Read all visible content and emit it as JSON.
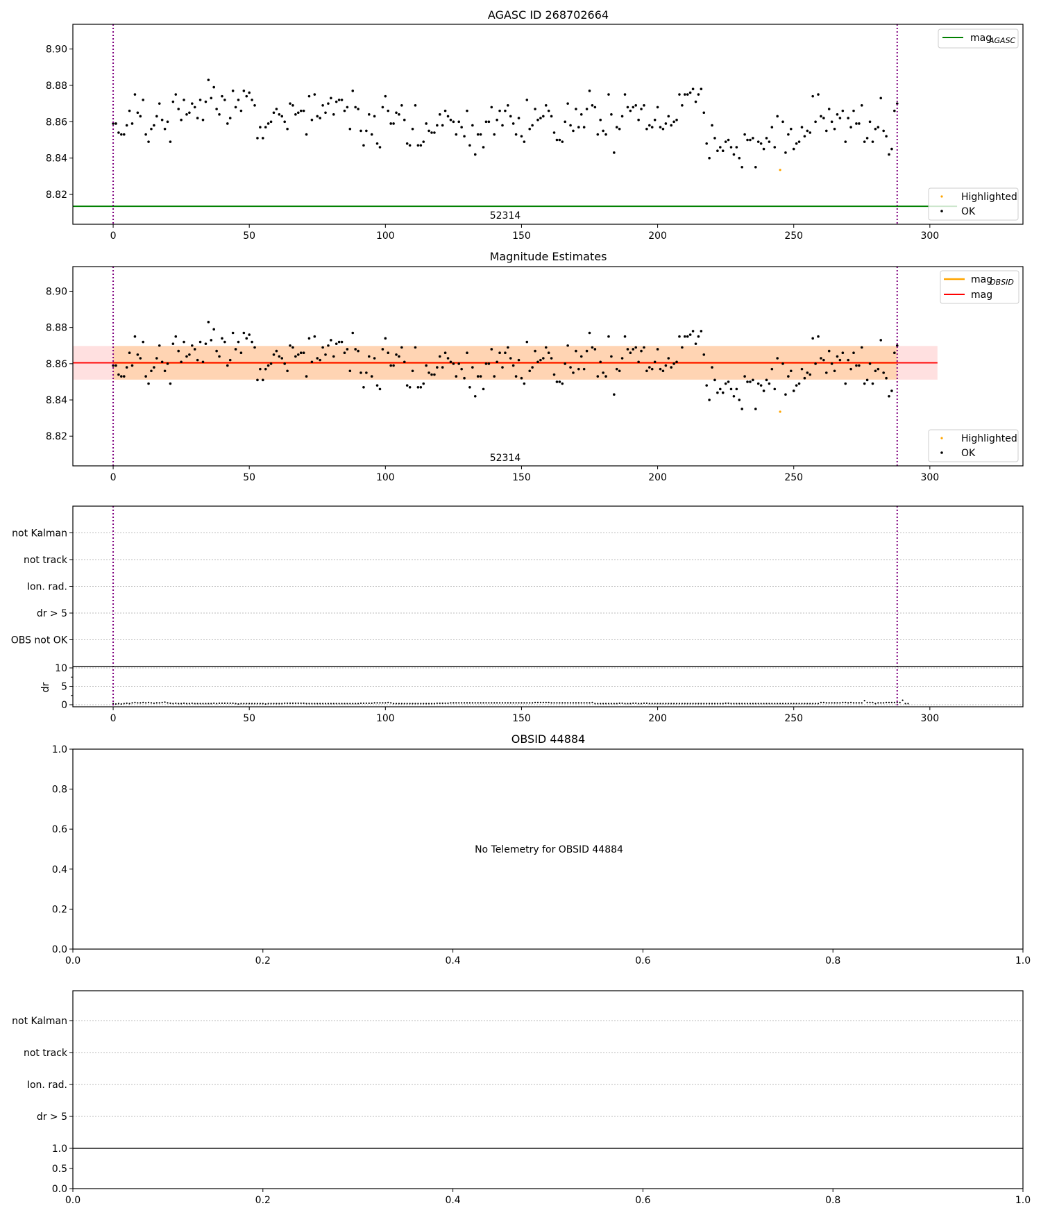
{
  "chart_data": [
    {
      "type": "scatter",
      "title": "AGASC ID 268702664",
      "xlim": [
        -14.8,
        334.2
      ],
      "ylim": [
        8.8036,
        8.9136
      ],
      "xticks": [
        "0",
        "50",
        "100",
        "150",
        "200",
        "250",
        "300"
      ],
      "yticks": [
        "8.82",
        "8.84",
        "8.86",
        "8.88",
        "8.90"
      ],
      "annotation": "52314",
      "annotation_x": 144,
      "obsid_bounds": [
        0,
        288
      ],
      "mag_agasc": 8.8135,
      "legend_top": {
        "position": "upper-right",
        "label_main": "mag",
        "label_sub": "AGASC"
      },
      "legend_bottom": {
        "position": "lower-right",
        "labels": [
          "Highlighted",
          "OK"
        ]
      },
      "highlighted_index": 245,
      "colors": {
        "ok": "#000000",
        "highlighted": "#ffa500",
        "agasc": "#008000",
        "bounds": "#800080"
      }
    },
    {
      "type": "scatter",
      "title": "Magnitude Estimates",
      "xlim": [
        -14.8,
        334.2
      ],
      "ylim": [
        8.8036,
        8.9136
      ],
      "xticks": [
        "0",
        "50",
        "100",
        "150",
        "200",
        "250",
        "300"
      ],
      "yticks": [
        "8.82",
        "8.84",
        "8.86",
        "8.88",
        "8.90"
      ],
      "annotation": "52314",
      "mag_obsid": 8.8605,
      "mag_obsid_range": [
        8.8512,
        8.8698
      ],
      "mag": 8.8605,
      "mag_range": [
        8.8512,
        8.8698
      ],
      "mag_x_end": 302.8,
      "legend_top": {
        "position": "upper-right",
        "items": [
          {
            "main": "mag",
            "sub": "OBSID",
            "color": "#ffa500"
          },
          {
            "main": "mag",
            "sub": "",
            "color": "#ff0000"
          }
        ]
      },
      "legend_bottom": {
        "position": "lower-right",
        "labels": [
          "Highlighted",
          "OK"
        ]
      }
    },
    {
      "type": "scatter",
      "flags": [
        "OBS not OK",
        "dr > 5",
        "Ion. rad.",
        "not track",
        "not Kalman"
      ],
      "dr_ylabel": "dr",
      "dr_yticks": [
        "0",
        "5",
        "10"
      ],
      "xticks": [
        "0",
        "50",
        "100",
        "150",
        "200",
        "250",
        "300"
      ],
      "xlim": [
        -14.8,
        334.2
      ]
    },
    {
      "type": "scatter",
      "title": "OBSID 44884",
      "message": "No Telemetry for OBSID 44884",
      "xticks": [
        "0.0",
        "0.2",
        "0.4",
        "0.6",
        "0.8",
        "1.0"
      ],
      "yticks": [
        "0.0",
        "0.2",
        "0.4",
        "0.6",
        "0.8",
        "1.0"
      ]
    },
    {
      "type": "scatter",
      "flags": [
        "dr > 5",
        "Ion. rad.",
        "not track",
        "not Kalman"
      ],
      "xticks": [
        "0.0",
        "0.2",
        "0.4",
        "0.6",
        "0.8",
        "1.0"
      ],
      "sub_yticks": [
        "0.0",
        "0.5",
        "1.0"
      ]
    }
  ],
  "series": {
    "mag": [
      8.859,
      8.859,
      8.854,
      8.853,
      8.853,
      8.858,
      8.866,
      8.859,
      8.875,
      8.865,
      8.863,
      8.872,
      8.853,
      8.849,
      8.856,
      8.858,
      8.863,
      8.87,
      8.861,
      8.856,
      8.86,
      8.849,
      8.871,
      8.875,
      8.867,
      8.861,
      8.872,
      8.864,
      8.865,
      8.87,
      8.868,
      8.862,
      8.872,
      8.861,
      8.871,
      8.883,
      8.873,
      8.879,
      8.867,
      8.864,
      8.874,
      8.872,
      8.859,
      8.862,
      8.877,
      8.868,
      8.872,
      8.866,
      8.877,
      8.874,
      8.876,
      8.872,
      8.869,
      8.851,
      8.857,
      8.851,
      8.857,
      8.859,
      8.86,
      8.865,
      8.867,
      8.864,
      8.863,
      8.86,
      8.856,
      8.87,
      8.869,
      8.864,
      8.865,
      8.866,
      8.866,
      8.853,
      8.874,
      8.861,
      8.875,
      8.863,
      8.862,
      8.869,
      8.865,
      8.87,
      8.873,
      8.864,
      8.871,
      8.872,
      8.872,
      8.866,
      8.868,
      8.856,
      8.877,
      8.868,
      8.867,
      8.855,
      8.847,
      8.855,
      8.864,
      8.853,
      8.863,
      8.848,
      8.846,
      8.868,
      8.874,
      8.866,
      8.859,
      8.859,
      8.865,
      8.864,
      8.869,
      8.861,
      8.848,
      8.847,
      8.856,
      8.869,
      8.847,
      8.847,
      8.849,
      8.859,
      8.855,
      8.854,
      8.854,
      8.858,
      8.864,
      8.858,
      8.866,
      8.863,
      8.861,
      8.86,
      8.853,
      8.86,
      8.857,
      8.852,
      8.866,
      8.847,
      8.858,
      8.842,
      8.853,
      8.853,
      8.846,
      8.86,
      8.86,
      8.868,
      8.853,
      8.861,
      8.866,
      8.858,
      8.866,
      8.869,
      8.863,
      8.859,
      8.853,
      8.862,
      8.852,
      8.849,
      8.872,
      8.856,
      8.858,
      8.867,
      8.861,
      8.862,
      8.863,
      8.869,
      8.866,
      8.863,
      8.854,
      8.85,
      8.85,
      8.849,
      8.86,
      8.87,
      8.858,
      8.855,
      8.867,
      8.857,
      8.864,
      8.857,
      8.867,
      8.877,
      8.869,
      8.868,
      8.853,
      8.861,
      8.855,
      8.853,
      8.875,
      8.864,
      8.843,
      8.857,
      8.856,
      8.863,
      8.875,
      8.868,
      8.866,
      8.868,
      8.869,
      8.861,
      8.867,
      8.869,
      8.856,
      8.858,
      8.857,
      8.861,
      8.868,
      8.857,
      8.856,
      8.859,
      8.863,
      8.858,
      8.86,
      8.861,
      8.875,
      8.869,
      8.875,
      8.875,
      8.876,
      8.878,
      8.871,
      8.875,
      8.878,
      8.865,
      8.848,
      8.84,
      8.858,
      8.851,
      8.844,
      8.846,
      8.844,
      8.849,
      8.85,
      8.846,
      8.842,
      8.846,
      8.84,
      8.835,
      8.853,
      8.85,
      8.85,
      8.851,
      8.835,
      8.849,
      8.848,
      8.845,
      8.851,
      8.849,
      8.857,
      8.846,
      8.863,
      8.8335,
      8.86,
      8.843,
      8.853,
      8.856,
      8.845,
      8.848,
      8.849,
      8.857,
      8.852,
      8.855,
      8.854,
      8.874,
      8.86,
      8.875,
      8.863,
      8.862,
      8.855,
      8.867,
      8.86,
      8.856,
      8.864,
      8.862,
      8.866,
      8.849,
      8.862,
      8.857,
      8.866,
      8.859,
      8.859,
      8.869,
      8.849,
      8.851,
      8.86,
      8.849,
      8.856,
      8.857,
      8.873,
      8.855,
      8.852,
      8.842,
      8.845,
      8.866,
      8.87
    ],
    "dr": [
      0.3,
      0.2,
      0.3,
      0.2,
      0.3,
      0.4,
      0.3,
      0.5,
      0.6,
      0.5,
      0.5,
      0.6,
      0.5,
      0.6,
      0.5,
      0.4,
      0.5,
      0.5,
      0.6,
      0.7,
      0.5,
      0.4,
      0.3,
      0.4,
      0.3,
      0.3,
      0.4,
      0.3,
      0.3,
      0.4,
      0.3,
      0.3,
      0.3,
      0.3,
      0.3,
      0.3,
      0.3,
      0.4,
      0.3,
      0.4,
      0.4,
      0.4,
      0.4,
      0.4,
      0.4,
      0.3,
      0.2,
      0.3,
      0.3,
      0.3,
      0.3,
      0.3,
      0.3,
      0.3,
      0.3,
      0.3,
      0.2,
      0.3,
      0.3,
      0.3,
      0.3,
      0.3,
      0.3,
      0.4,
      0.4,
      0.4,
      0.4,
      0.4,
      0.4,
      0.4,
      0.4,
      0.3,
      0.3,
      0.3,
      0.3,
      0.3,
      0.3,
      0.3,
      0.3,
      0.3,
      0.3,
      0.3,
      0.3,
      0.3,
      0.3,
      0.3,
      0.3,
      0.3,
      0.3,
      0.3,
      0.3,
      0.4,
      0.4,
      0.4,
      0.4,
      0.4,
      0.5,
      0.5,
      0.5,
      0.5,
      0.5,
      0.6,
      0.5,
      0.3,
      0.3,
      0.3,
      0.3,
      0.3,
      0.3,
      0.3,
      0.3,
      0.3,
      0.3,
      0.3,
      0.3,
      0.3,
      0.3,
      0.3,
      0.3,
      0.4,
      0.4,
      0.4,
      0.4,
      0.4,
      0.5,
      0.5,
      0.5,
      0.5,
      0.5,
      0.5,
      0.5,
      0.5,
      0.5,
      0.5,
      0.5,
      0.5,
      0.5,
      0.5,
      0.5,
      0.5,
      0.5,
      0.5,
      0.5,
      0.5,
      0.5,
      0.5,
      0.5,
      0.5,
      0.5,
      0.5,
      0.5,
      0.5,
      0.5,
      0.5,
      0.5,
      0.6,
      0.6,
      0.6,
      0.6,
      0.6,
      0.6,
      0.5,
      0.5,
      0.5,
      0.5,
      0.5,
      0.5,
      0.5,
      0.5,
      0.5,
      0.5,
      0.5,
      0.5,
      0.5,
      0.5,
      0.5,
      0.6,
      0.3,
      0.3,
      0.3,
      0.3,
      0.3,
      0.3,
      0.3,
      0.3,
      0.3,
      0.4,
      0.4,
      0.3,
      0.3,
      0.3,
      0.4,
      0.4,
      0.3,
      0.3,
      0.4,
      0.4,
      0.3,
      0.3,
      0.3,
      0.3,
      0.3,
      0.3,
      0.3,
      0.3,
      0.3,
      0.3,
      0.3,
      0.3,
      0.3,
      0.3,
      0.3,
      0.3,
      0.3,
      0.3,
      0.3,
      0.3,
      0.3,
      0.3,
      0.3,
      0.3,
      0.3,
      0.3,
      0.3,
      0.3,
      0.4,
      0.4,
      0.3,
      0.3,
      0.3,
      0.3,
      0.3,
      0.3,
      0.3,
      0.3,
      0.3,
      0.3,
      0.3,
      0.3,
      0.3,
      0.3,
      0.3,
      0.3,
      0.3,
      0.3,
      0.3,
      0.3,
      0.3,
      0.3,
      0.3,
      0.3,
      0.3,
      0.3,
      0.3,
      0.3,
      0.3,
      0.3,
      0.3,
      0.3,
      0.3,
      0.6,
      0.6,
      0.5,
      0.5,
      0.5,
      0.5,
      0.5,
      0.5,
      0.6,
      0.6,
      0.5,
      0.6,
      0.5,
      0.5,
      0.5,
      0.5,
      1.1,
      0.6,
      0.6,
      0.6,
      0.3,
      0.5,
      0.5,
      0.5,
      0.6,
      0.6,
      0.6,
      0.6,
      0.6,
      0.6,
      1.2,
      0.3,
      0.3
    ]
  }
}
